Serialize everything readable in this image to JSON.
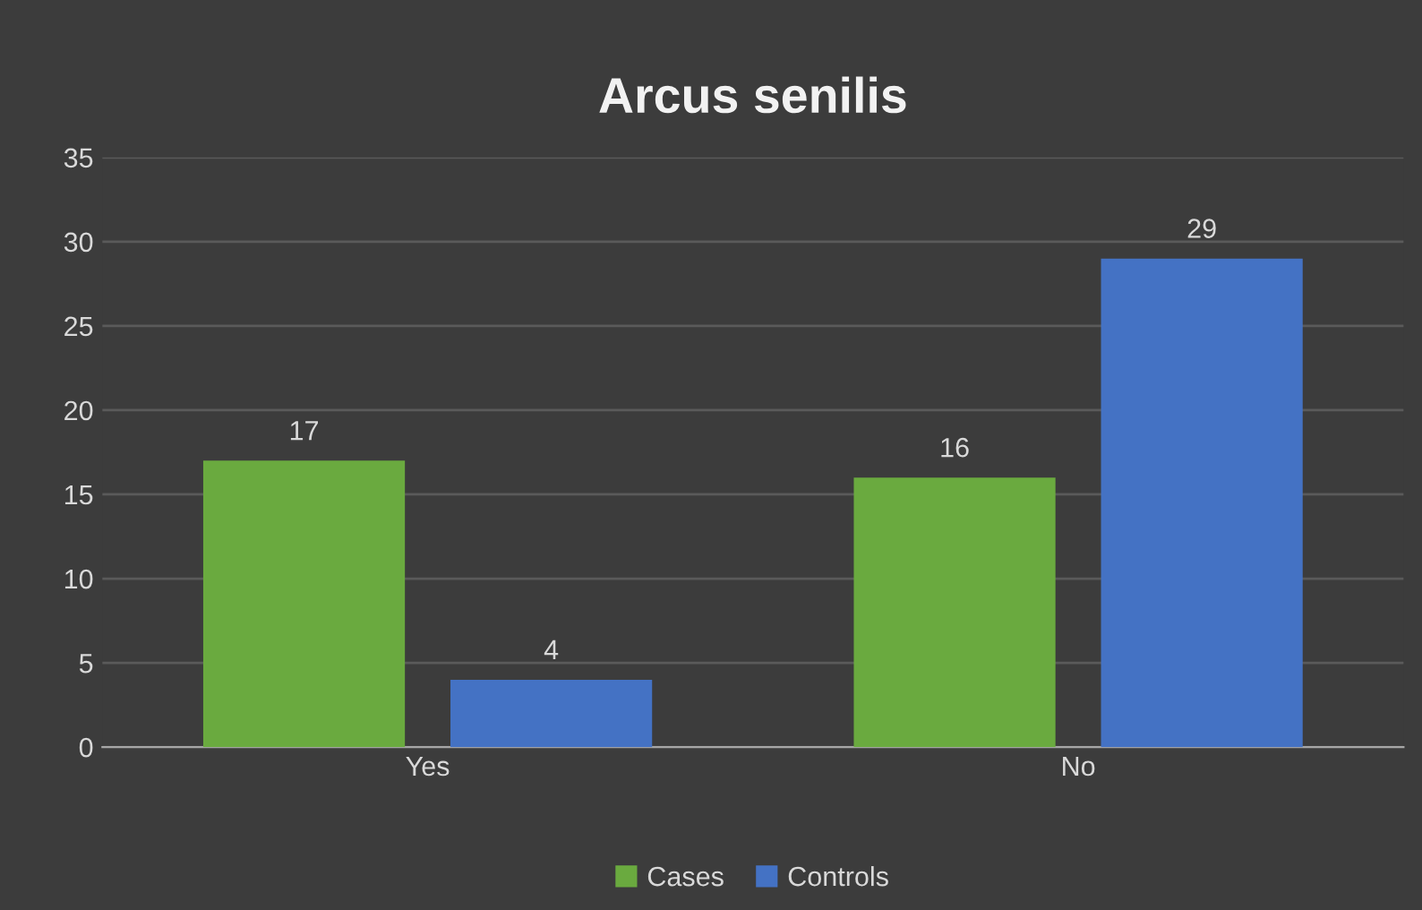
{
  "chart_data": {
    "type": "bar",
    "title": "Arcus senilis",
    "categories": [
      "Yes",
      "No"
    ],
    "series": [
      {
        "name": "Cases",
        "color": "#6aaa3f",
        "values": [
          17,
          16
        ]
      },
      {
        "name": "Controls",
        "color": "#4472c4",
        "values": [
          4,
          29
        ]
      }
    ],
    "ylim": [
      0,
      35
    ],
    "yticks": [
      0,
      5,
      10,
      15,
      20,
      25,
      30,
      35
    ],
    "grid": "y",
    "legend": "bottom",
    "data_labels": true
  }
}
